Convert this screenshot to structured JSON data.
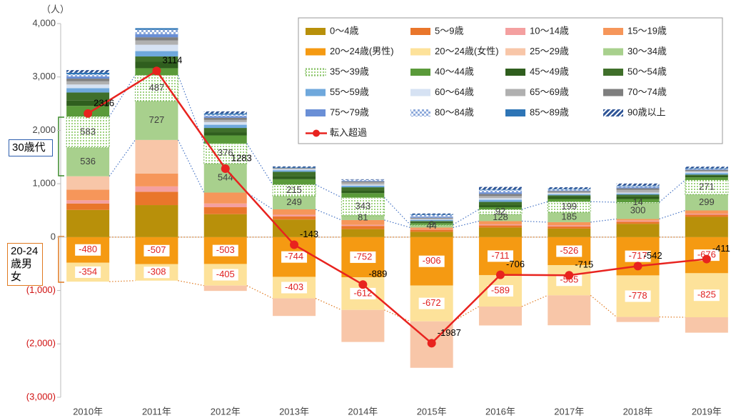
{
  "chart_data": {
    "type": "bar",
    "stacked": true,
    "unit_label": "（人）",
    "annotations": [
      "30歳代",
      "20-24歳男女"
    ],
    "categories": [
      "2010年",
      "2011年",
      "2012年",
      "2013年",
      "2014年",
      "2015年",
      "2016年",
      "2017年",
      "2018年",
      "2019年"
    ],
    "ylim": [
      -3000,
      4000
    ],
    "yticks": [
      {
        "value": -3000,
        "label": "(3,000)"
      },
      {
        "value": -2000,
        "label": "(2,000)"
      },
      {
        "value": -1000,
        "label": "(1,000)"
      },
      0,
      {
        "value": 1000,
        "label": "1,000"
      },
      {
        "value": 2000,
        "label": "2,000"
      },
      {
        "value": 3000,
        "label": "3,000"
      },
      {
        "value": 4000,
        "label": "4,000"
      }
    ],
    "series": [
      {
        "name": "0～4歳",
        "color": "#b8900a",
        "values": [
          510,
          600,
          430,
          330,
          150,
          100,
          180,
          160,
          250,
          380
        ]
      },
      {
        "name": "5～9歳",
        "color": "#e9762b",
        "values": [
          120,
          250,
          130,
          60,
          60,
          40,
          40,
          40,
          40,
          40
        ]
      },
      {
        "name": "10～14歳",
        "color": "#f4a0a0",
        "values": [
          60,
          100,
          70,
          30,
          20,
          10,
          20,
          20,
          20,
          20
        ]
      },
      {
        "name": "15～19歳",
        "color": "#f6965a",
        "values": [
          200,
          240,
          205,
          100,
          90,
          30,
          60,
          60,
          30,
          60
        ]
      },
      {
        "name": "20～24歳(男性)",
        "color": "#f59a12",
        "labeled": true,
        "values": [
          -480,
          -507,
          -503,
          -744,
          -752,
          -906,
          -711,
          -526,
          -717,
          -676
        ]
      },
      {
        "name": "20～24歳(女性)",
        "color": "#fde29a",
        "labeled": true,
        "values": [
          -354,
          -308,
          -405,
          -403,
          -612,
          -672,
          -589,
          -565,
          -778,
          -825
        ]
      },
      {
        "name": "25～29歳",
        "color": "#f8c6a8",
        "values": [
          250,
          630,
          -100,
          -330,
          -600,
          -870,
          -355,
          -560,
          -95,
          -289
        ]
      },
      {
        "name": "30～34歳",
        "color": "#a8d08d",
        "labeled": true,
        "values": [
          536,
          727,
          544,
          249,
          81,
          44,
          128,
          185,
          300,
          299
        ]
      },
      {
        "name": "35～39歳",
        "color": "#7cbf5a",
        "pattern": "dots",
        "labeled": true,
        "values": [
          583,
          487,
          376,
          215,
          343,
          9,
          92,
          199,
          14,
          271
        ]
      },
      {
        "name": "40～44歳",
        "color": "#5a9a3a",
        "values": [
          200,
          130,
          150,
          100,
          80,
          30,
          40,
          50,
          60,
          50
        ]
      },
      {
        "name": "45～49歳",
        "color": "#2f5e1e",
        "values": [
          100,
          120,
          60,
          60,
          50,
          20,
          40,
          40,
          50,
          30
        ]
      },
      {
        "name": "50～54歳",
        "color": "#3f6f2a",
        "values": [
          150,
          100,
          80,
          80,
          60,
          20,
          60,
          30,
          30,
          20
        ]
      },
      {
        "name": "55～59歳",
        "color": "#6fa8dc",
        "values": [
          80,
          100,
          60,
          30,
          30,
          20,
          40,
          20,
          20,
          30
        ]
      },
      {
        "name": "60～64歳",
        "color": "#d6e2f3",
        "values": [
          70,
          120,
          50,
          20,
          20,
          10,
          30,
          20,
          20,
          20
        ]
      },
      {
        "name": "65～69歳",
        "color": "#b0b0b0",
        "values": [
          60,
          80,
          40,
          10,
          40,
          20,
          40,
          20,
          50,
          20
        ]
      },
      {
        "name": "70～74歳",
        "color": "#7f7f7f",
        "values": [
          50,
          60,
          40,
          10,
          20,
          10,
          40,
          20,
          30,
          20
        ]
      },
      {
        "name": "75～79歳",
        "color": "#6a8fd6",
        "values": [
          40,
          60,
          30,
          0,
          10,
          20,
          30,
          10,
          20,
          10
        ]
      },
      {
        "name": "80～84歳",
        "color": "#8eaadb",
        "pattern": "checker",
        "values": [
          40,
          80,
          30,
          0,
          20,
          30,
          40,
          20,
          20,
          10
        ]
      },
      {
        "name": "85～89歳",
        "color": "#2e75b6",
        "values": [
          30,
          30,
          20,
          10,
          0,
          10,
          10,
          10,
          10,
          10
        ]
      },
      {
        "name": "90歳以上",
        "color": "#2f5597",
        "pattern": "stripes",
        "values": [
          50,
          0,
          40,
          20,
          10,
          20,
          50,
          30,
          40,
          30
        ]
      },
      {
        "name": "転入超過",
        "type": "line",
        "color": "#e8231f",
        "values": [
          2316,
          3114,
          1283,
          -143,
          -889,
          -1987,
          -706,
          -715,
          -542,
          -411
        ]
      }
    ]
  }
}
